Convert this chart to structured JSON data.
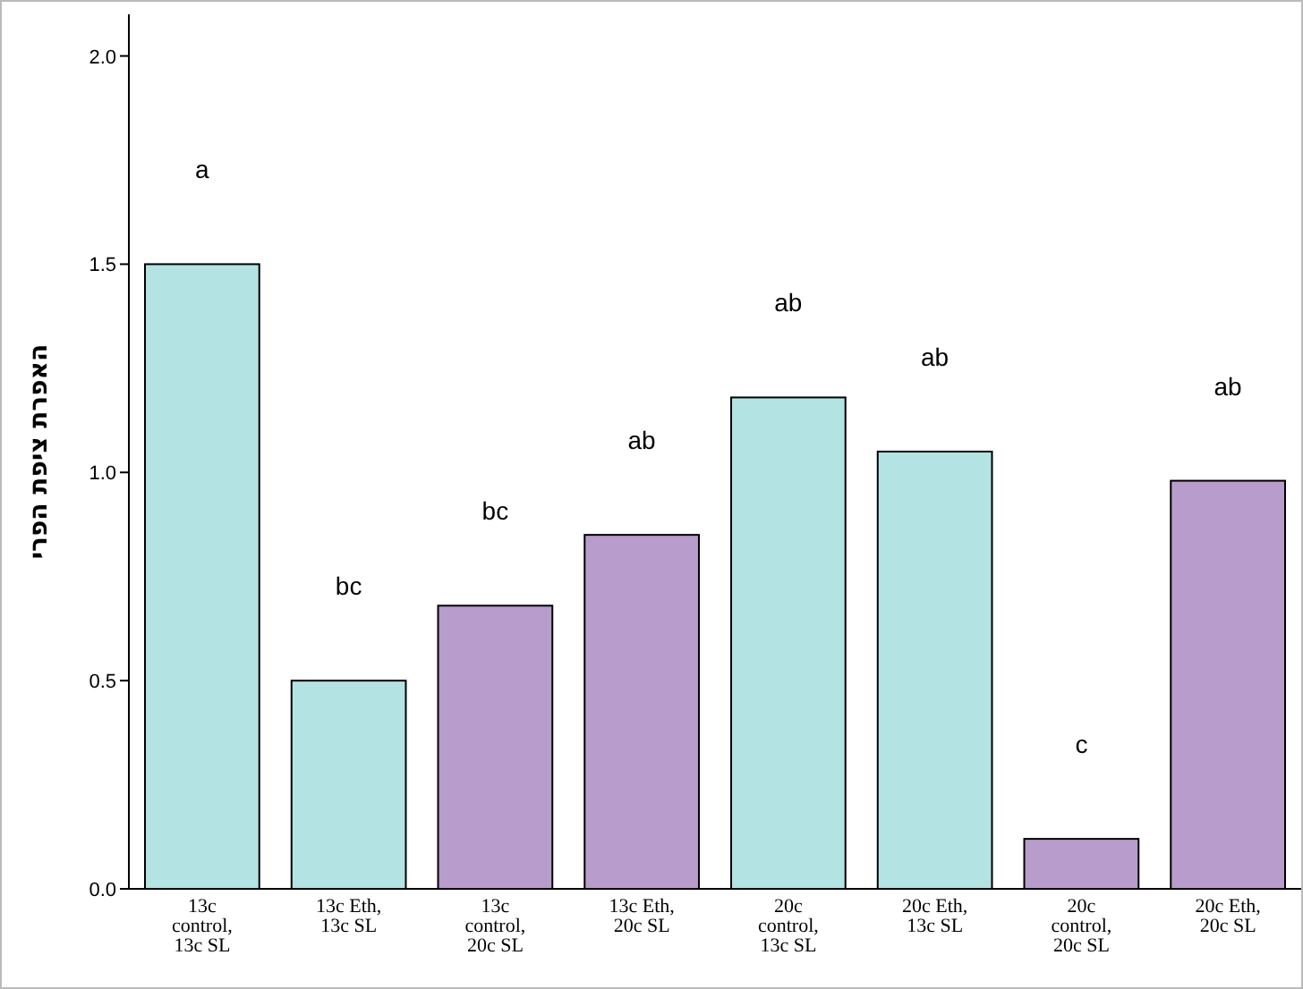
{
  "chart_data": {
    "type": "bar",
    "ylabel": "האפרת ציפת הפרי",
    "categories": [
      "13c control, 13c SL",
      "13c Eth, 13c SL",
      "13c control, 20c SL",
      "13c Eth, 20c SL",
      "20c control, 13c SL",
      "20c Eth, 13c SL",
      "20c control, 20c SL",
      "20c Eth, 20c SL"
    ],
    "values": [
      1.5,
      0.5,
      0.68,
      0.85,
      1.18,
      1.05,
      0.12,
      0.98
    ],
    "colors": [
      "#b3e3e3",
      "#b3e3e3",
      "#b89ccc",
      "#b89ccc",
      "#b3e3e3",
      "#b3e3e3",
      "#b89ccc",
      "#b89ccc"
    ],
    "ylim": [
      0,
      2.1
    ],
    "yticks": [
      {
        "value": 0,
        "label": "0.0"
      },
      {
        "value": 0.5,
        "label": "0.5"
      },
      {
        "value": 1.0,
        "label": "1.0"
      },
      {
        "value": 1.5,
        "label": "1.5"
      },
      {
        "value": 2.0,
        "label": "2.0"
      }
    ],
    "grid": false,
    "annotations": [
      "a",
      "bc",
      "bc",
      "ab",
      "ab",
      "ab",
      "c",
      "ab"
    ]
  }
}
